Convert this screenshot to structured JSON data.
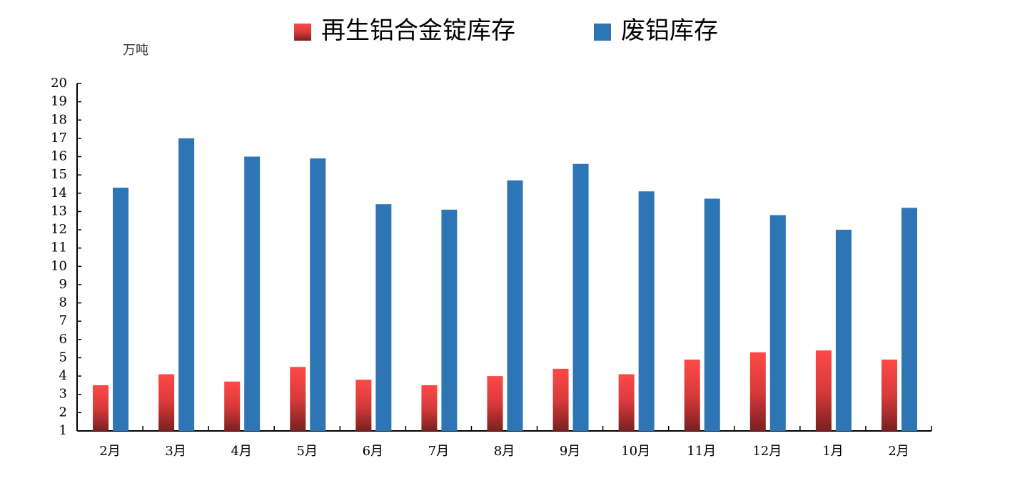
{
  "chart_data": {
    "type": "bar",
    "y_unit": "万吨",
    "categories": [
      "2月",
      "3月",
      "4月",
      "5月",
      "6月",
      "7月",
      "8月",
      "9月",
      "10月",
      "11月",
      "12月",
      "1月",
      "2月"
    ],
    "series": [
      {
        "name": "再生铝合金锭库存",
        "color": "#f04444",
        "values": [
          3.5,
          4.1,
          3.7,
          4.5,
          3.8,
          3.5,
          4.0,
          4.4,
          4.1,
          4.9,
          5.3,
          5.4,
          4.9
        ]
      },
      {
        "name": "废铝库存",
        "color": "#2e75b6",
        "values": [
          14.3,
          17.0,
          16.0,
          15.9,
          13.4,
          13.1,
          14.7,
          15.6,
          14.1,
          13.7,
          12.8,
          12.0,
          13.2
        ]
      }
    ],
    "ylim": [
      1,
      20
    ],
    "yticks": [
      1,
      2,
      3,
      4,
      5,
      6,
      7,
      8,
      9,
      10,
      11,
      12,
      13,
      14,
      15,
      16,
      17,
      18,
      19,
      20
    ],
    "grid": false
  }
}
